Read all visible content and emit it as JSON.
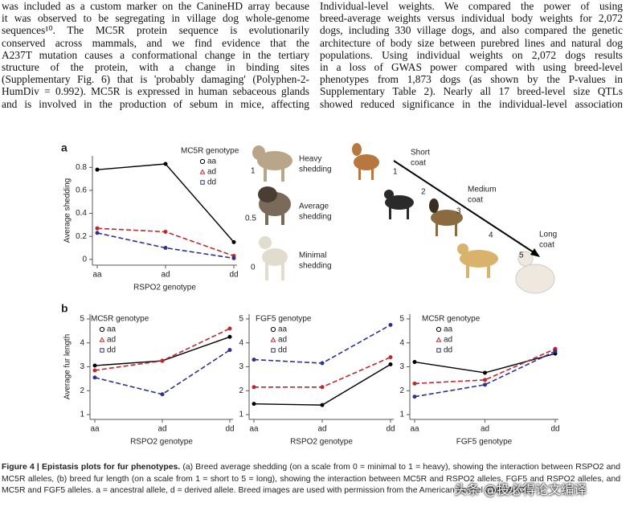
{
  "text": {
    "left": [
      "was included as a custom marker on the CanineHD array because",
      "it was observed to be segregating in village dog whole-genome",
      "sequences¹⁰. The MC5R protein sequence is evolutionarily",
      "conserved across mammals, and we find evidence that the",
      "A237T mutation causes a conformational change in the tertiary",
      "structure of the protein, with a change in binding sites",
      "(Supplementary Fig. 6) that is 'probably damaging' (Polyphen-2-",
      "HumDiv = 0.992). MC5R is expressed in human sebaceous glands",
      "and is involved in the production of sebum in mice, affecting"
    ],
    "right_heading": "Individual-level weights.",
    "right": [
      "We compared the power of using",
      "breed-average weights versus individual body weights for 2,072",
      "dogs, including 330 village dogs, and also compared the genetic",
      "architecture of body size between purebred lines and natural dog",
      "populations. Using individual weights on 2,072 dogs results",
      "in a loss of GWAS power compared with using breed-level",
      "phenotypes from 1,873 dogs (as shown by the P-values in",
      "Supplementary Table 2). Nearly all 17 breed-level size QTLs",
      "showed reduced significance in the individual-level association"
    ]
  },
  "panel_labels": [
    "a",
    "b"
  ],
  "shedding_scale": [
    {
      "value": 1,
      "label_lines": [
        "Heavy",
        "shedding"
      ]
    },
    {
      "value": 0.5,
      "label_lines": [
        "Average",
        "shedding"
      ]
    },
    {
      "value": 0,
      "label_lines": [
        "Minimal",
        "shedding"
      ]
    }
  ],
  "coat_scale": {
    "steps": [
      1,
      2,
      3,
      4,
      5
    ],
    "labels": [
      {
        "step": 1,
        "label_lines": [
          "Short",
          "coat"
        ]
      },
      {
        "step": 3,
        "label_lines": [
          "Medium",
          "coat"
        ]
      },
      {
        "step": 5,
        "label_lines": [
          "Long",
          "coat"
        ]
      }
    ]
  },
  "chart_data": [
    {
      "type": "line",
      "legend_title": "MC5R genotype",
      "x_label": "RSPO2 genotype",
      "y_label": "Average shedding",
      "categories": [
        "aa",
        "ad",
        "dd"
      ],
      "ylim": [
        -0.05,
        0.9
      ],
      "yticks": [
        0,
        0.2,
        0.4,
        0.6,
        0.8
      ],
      "series": [
        {
          "name": "aa",
          "color": "#000000",
          "dash": false,
          "marker": "circle",
          "values": [
            0.78,
            0.83,
            0.15
          ]
        },
        {
          "name": "ad",
          "color": "#c0272d",
          "dash": true,
          "marker": "triangle",
          "values": [
            0.27,
            0.24,
            0.03
          ]
        },
        {
          "name": "dd",
          "color": "#2e3192",
          "dash": true,
          "marker": "square",
          "values": [
            0.23,
            0.1,
            0.01
          ]
        }
      ]
    },
    {
      "type": "line",
      "legend_title": "MC5R genotype",
      "x_label": "RSPO2 genotype",
      "y_label": "Average fur length",
      "categories": [
        "aa",
        "ad",
        "dd"
      ],
      "ylim": [
        0.8,
        5.2
      ],
      "yticks": [
        1,
        2,
        3,
        4,
        5
      ],
      "series": [
        {
          "name": "aa",
          "color": "#000000",
          "dash": false,
          "marker": "circle",
          "values": [
            3.05,
            3.25,
            4.25
          ]
        },
        {
          "name": "ad",
          "color": "#c0272d",
          "dash": true,
          "marker": "triangle",
          "values": [
            2.85,
            3.25,
            4.6
          ]
        },
        {
          "name": "dd",
          "color": "#2e3192",
          "dash": true,
          "marker": "square",
          "values": [
            2.55,
            1.85,
            3.7
          ]
        }
      ]
    },
    {
      "type": "line",
      "legend_title": "FGF5 genotype",
      "x_label": "RSPO2 genotype",
      "categories": [
        "aa",
        "ad",
        "dd"
      ],
      "ylim": [
        0.8,
        5.2
      ],
      "yticks": [
        1,
        2,
        3,
        4,
        5
      ],
      "series": [
        {
          "name": "aa",
          "color": "#000000",
          "dash": false,
          "marker": "circle",
          "values": [
            1.45,
            1.4,
            3.1
          ]
        },
        {
          "name": "ad",
          "color": "#c0272d",
          "dash": true,
          "marker": "triangle",
          "values": [
            2.15,
            2.15,
            3.4
          ]
        },
        {
          "name": "dd",
          "color": "#2e3192",
          "dash": true,
          "marker": "square",
          "values": [
            3.3,
            3.15,
            4.75
          ]
        }
      ]
    },
    {
      "type": "line",
      "legend_title": "MC5R genotype",
      "x_label": "FGF5 genotype",
      "categories": [
        "aa",
        "ad",
        "dd"
      ],
      "ylim": [
        0.8,
        5.2
      ],
      "yticks": [
        1,
        2,
        3,
        4,
        5
      ],
      "series": [
        {
          "name": "aa",
          "color": "#000000",
          "dash": false,
          "marker": "circle",
          "values": [
            3.2,
            2.75,
            3.55
          ]
        },
        {
          "name": "ad",
          "color": "#c0272d",
          "dash": true,
          "marker": "triangle",
          "values": [
            2.3,
            2.45,
            3.75
          ]
        },
        {
          "name": "dd",
          "color": "#2e3192",
          "dash": true,
          "marker": "square",
          "values": [
            1.75,
            2.25,
            3.65
          ]
        }
      ]
    }
  ],
  "caption": {
    "lead": "Figure 4 | Epistasis plots for fur phenotypes.",
    "text": "(a) Breed average shedding (on a scale from 0 = minimal to 1 = heavy), showing the interaction between RSPO2 and MC5R alleles, (b) breed fur length (on a scale from 1 = short to 5 = long), showing the interaction between MC5R and RSPO2 alleles, FGF5 and RSPO2 alleles, and MC5R and FGF5 alleles. a = ancestral allele, d = derived allele. Breed images are used with permission from the American Kennel Club (AKC)."
  },
  "watermark": "头条 @投必得论文编译"
}
